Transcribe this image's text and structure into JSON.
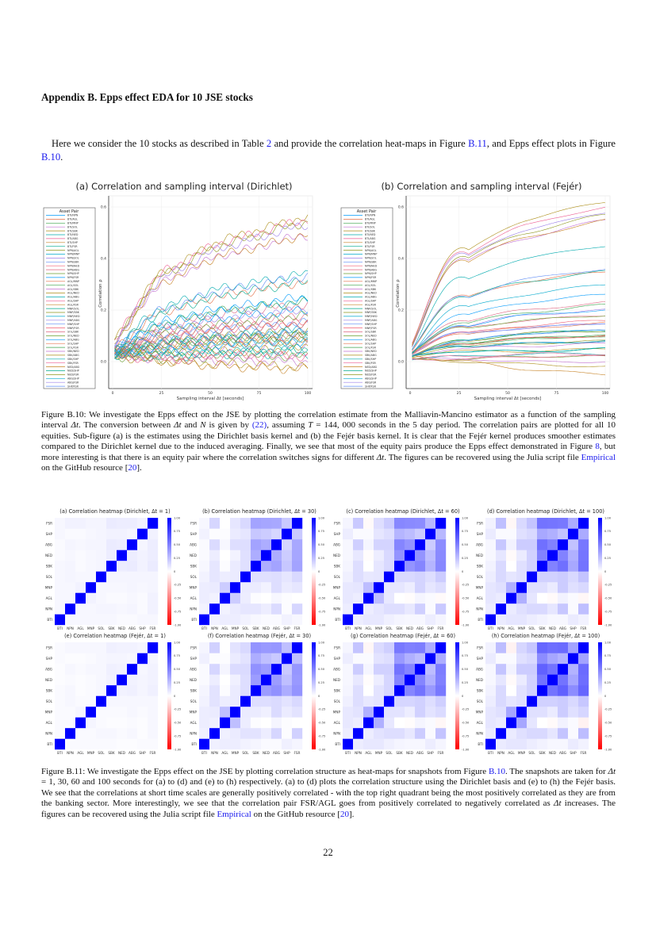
{
  "heading": "Appendix  B.  Epps effect EDA for 10 JSE stocks",
  "intro": [
    {
      "t": "Here we consider the 10 stocks as described in Table ",
      "s": ""
    },
    {
      "t": "2",
      "s": "link"
    },
    {
      "t": " and provide the correlation heat-maps in Figure ",
      "s": ""
    },
    {
      "t": "B.11",
      "s": "link"
    },
    {
      "t": ", and Epps effect plots in Figure ",
      "s": ""
    },
    {
      "t": "B.10",
      "s": "link"
    },
    {
      "t": ".",
      "s": ""
    }
  ],
  "caption_b10": [
    {
      "t": "Figure B.10: We investigate the Epps effect on the JSE by plotting the correlation estimate from the Malliavin-Mancino estimator as a function of the sampling interval ",
      "s": ""
    },
    {
      "t": "Δt",
      "s": "it"
    },
    {
      "t": ". The conversion between ",
      "s": ""
    },
    {
      "t": "Δt",
      "s": "it"
    },
    {
      "t": " and ",
      "s": ""
    },
    {
      "t": "N",
      "s": "it"
    },
    {
      "t": " is given by ",
      "s": ""
    },
    {
      "t": "(22)",
      "s": "link"
    },
    {
      "t": ", assuming ",
      "s": ""
    },
    {
      "t": "T",
      "s": "it"
    },
    {
      "t": " = 144, 000 seconds in the 5 day period. The correlation pairs are plotted for all 10 equities. Sub-figure (a) is the estimates using the Dirichlet basis kernel and (b) the Fejér basis kernel. It is clear that the Fejér kernel produces smoother estimates compared to the Dirichlet kernel due to the induced averaging. Finally, we see that most of the equity pairs produce the Epps effect demonstrated in Figure ",
      "s": ""
    },
    {
      "t": "8",
      "s": "link"
    },
    {
      "t": ", but more interesting is that there is an equity pair where the correlation switches signs for different ",
      "s": ""
    },
    {
      "t": "Δt",
      "s": "it"
    },
    {
      "t": ". The figures can be recovered using the Julia script file ",
      "s": ""
    },
    {
      "t": "Empirical",
      "s": "link"
    },
    {
      "t": " on the GitHub resource [",
      "s": ""
    },
    {
      "t": "20",
      "s": "link"
    },
    {
      "t": "].",
      "s": ""
    }
  ],
  "caption_b11": [
    {
      "t": "Figure B.11: We investigate the Epps effect on the JSE by plotting correlation structure as heat-maps for snapshots from Figure ",
      "s": ""
    },
    {
      "t": "B.10",
      "s": "link"
    },
    {
      "t": ". The snapshots are taken for ",
      "s": ""
    },
    {
      "t": "Δt",
      "s": "it"
    },
    {
      "t": " = 1, 30, 60 and 100 seconds for (a) to (d) and (e) to (h) respectively.  (a) to (d) plots the correlation structure using the Dirichlet basis and (e) to (h) the Fejér basis. We see that the correlations at short time scales are generally positively correlated - with the top right quadrant being the most positively correlated as they are from the banking sector. More interestingly, we see that the correlation pair FSR/AGL goes from positively correlated to negatively correlated as ",
      "s": ""
    },
    {
      "t": "Δt",
      "s": "it"
    },
    {
      "t": " increases. The figures can be recovered using the Julia script file ",
      "s": ""
    },
    {
      "t": "Empirical",
      "s": "link"
    },
    {
      "t": " on the GitHub resource [",
      "s": ""
    },
    {
      "t": "20",
      "s": "link"
    },
    {
      "t": "].",
      "s": ""
    }
  ],
  "page_number": "22",
  "colors": {
    "link": "#1a1aee",
    "heat_positive": "#0000ff",
    "heat_zero": "#ffffff",
    "heat_negative": "#ff0000",
    "palette": [
      "#009afa",
      "#e36f47",
      "#3ea44e",
      "#c371d2",
      "#ac8e18",
      "#00aaae",
      "#ed5e93",
      "#c68225",
      "#00a98d",
      "#8e971e",
      "#00a9cd",
      "#9b7fe9",
      "#618df6",
      "#f05f73",
      "#dd6480",
      "#6a9f31"
    ]
  },
  "stocks": [
    "BTI",
    "NPN",
    "AGL",
    "MNP",
    "SOL",
    "SBK",
    "NED",
    "ABG",
    "SHP",
    "FSR"
  ],
  "pairs": [
    "BTI/NPN",
    "BTI/AGL",
    "BTI/MNP",
    "BTI/SOL",
    "BTI/SBK",
    "BTI/NED",
    "BTI/ABG",
    "BTI/SHP",
    "BTI/FSR",
    "NPN/AGL",
    "NPN/MNP",
    "NPN/SOL",
    "NPN/SBK",
    "NPN/NED",
    "NPN/ABG",
    "NPN/SHP",
    "NPN/FSR",
    "AGL/MNP",
    "AGL/SOL",
    "AGL/SBK",
    "AGL/NED",
    "AGL/ABG",
    "AGL/SHP",
    "AGL/FSR",
    "MNP/SOL",
    "MNP/SBK",
    "MNP/NED",
    "MNP/ABG",
    "MNP/SHP",
    "MNP/FSR",
    "SOL/SBK",
    "SOL/NED",
    "SOL/ABG",
    "SOL/SHP",
    "SOL/FSR",
    "SBK/NED",
    "SBK/ABG",
    "SBK/SHP",
    "SBK/FSR",
    "NED/ABG",
    "NED/SHP",
    "NED/FSR",
    "ABG/SHP",
    "ABG/FSR",
    "SHP/FSR"
  ],
  "chart_data": [
    {
      "type": "line",
      "title": "(a) Correlation and sampling interval (Dirichlet)",
      "xlabel": "Sampling interval Δt [seconds]",
      "ylabel": "Correlation ρ",
      "legend_title": "Asset Pair",
      "legend_position": "outside-left",
      "grid": true,
      "xlim": [
        0,
        100
      ],
      "ylim": [
        -0.1,
        0.64
      ],
      "xticks": [
        "0",
        "25",
        "50",
        "75",
        "100"
      ],
      "yticks": [
        "0.0",
        "0.2",
        "0.4",
        "0.6"
      ],
      "x": [
        1,
        30,
        60,
        100
      ],
      "series": [
        [
          0.03,
          0.05,
          0.07,
          0.08
        ],
        [
          0.03,
          0.07,
          0.09,
          0.1
        ],
        [
          0.03,
          0.07,
          0.09,
          0.1
        ],
        [
          0.03,
          0.05,
          0.06,
          0.07
        ],
        [
          0.03,
          0.03,
          0.04,
          0.05
        ],
        [
          0.02,
          0.02,
          0.03,
          0.03
        ],
        [
          0.02,
          0.02,
          0.03,
          0.03
        ],
        [
          0.03,
          0.05,
          0.07,
          0.08
        ],
        [
          0.03,
          0.03,
          0.04,
          0.05
        ],
        [
          0.03,
          0.05,
          0.07,
          0.08
        ],
        [
          0.03,
          0.08,
          0.1,
          0.12
        ],
        [
          0.04,
          0.1,
          0.13,
          0.15
        ],
        [
          0.04,
          0.1,
          0.13,
          0.15
        ],
        [
          0.03,
          0.07,
          0.09,
          0.1
        ],
        [
          0.04,
          0.14,
          0.19,
          0.22
        ],
        [
          0.02,
          0.01,
          0.02,
          0.02
        ],
        [
          0.05,
          0.16,
          0.21,
          0.25
        ],
        [
          0.05,
          0.2,
          0.26,
          0.31
        ],
        [
          0.03,
          0.07,
          0.09,
          0.1
        ],
        [
          0.02,
          0.01,
          0.0,
          0.0
        ],
        [
          0.02,
          0.0,
          -0.01,
          -0.02
        ],
        [
          0.03,
          0.03,
          0.04,
          0.05
        ],
        [
          0.02,
          0.01,
          0.02,
          0.02
        ],
        [
          0.05,
          0.0,
          -0.02,
          -0.03
        ],
        [
          0.03,
          0.08,
          0.1,
          0.12
        ],
        [
          0.03,
          0.08,
          0.1,
          0.12
        ],
        [
          0.03,
          0.05,
          0.07,
          0.08
        ],
        [
          0.04,
          0.13,
          0.17,
          0.2
        ],
        [
          0.03,
          0.08,
          0.1,
          0.12
        ],
        [
          0.04,
          0.1,
          0.13,
          0.15
        ],
        [
          0.04,
          0.12,
          0.15,
          0.18
        ],
        [
          0.04,
          0.12,
          0.15,
          0.18
        ],
        [
          0.04,
          0.13,
          0.17,
          0.2
        ],
        [
          0.04,
          0.1,
          0.13,
          0.15
        ],
        [
          0.04,
          0.15,
          0.2,
          0.23
        ],
        [
          0.07,
          0.32,
          0.42,
          0.49
        ],
        [
          0.08,
          0.36,
          0.48,
          0.56
        ],
        [
          0.05,
          0.22,
          0.29,
          0.34
        ],
        [
          0.08,
          0.36,
          0.47,
          0.55
        ],
        [
          0.07,
          0.32,
          0.42,
          0.49
        ],
        [
          0.05,
          0.2,
          0.26,
          0.31
        ],
        [
          0.07,
          0.35,
          0.46,
          0.54
        ],
        [
          0.04,
          0.16,
          0.2,
          0.24
        ],
        [
          0.07,
          0.34,
          0.45,
          0.53
        ],
        [
          0.05,
          0.21,
          0.28,
          0.33
        ]
      ]
    },
    {
      "type": "line",
      "title": "(b) Correlation and sampling interval (Fejér)",
      "xlabel": "Sampling interval Δt [seconds]",
      "ylabel": "Correlation ρ",
      "legend_title": "Asset Pair",
      "legend_position": "outside-left",
      "grid": true,
      "xlim": [
        0,
        100
      ],
      "ylim": [
        -0.1,
        0.64
      ],
      "xticks": [
        "0",
        "25",
        "50",
        "75",
        "100"
      ],
      "yticks": [
        "0.0",
        "0.2",
        "0.4",
        "0.6"
      ],
      "x": [
        1,
        30,
        60,
        100
      ],
      "series": [
        [
          0.02,
          0.06,
          0.07,
          0.08
        ],
        [
          0.02,
          0.07,
          0.09,
          0.1
        ],
        [
          0.02,
          0.07,
          0.09,
          0.1
        ],
        [
          0.02,
          0.05,
          0.06,
          0.07
        ],
        [
          0.02,
          0.04,
          0.04,
          0.05
        ],
        [
          0.01,
          0.02,
          0.03,
          0.03
        ],
        [
          0.01,
          0.02,
          0.03,
          0.03
        ],
        [
          0.02,
          0.06,
          0.07,
          0.08
        ],
        [
          0.02,
          0.04,
          0.04,
          0.05
        ],
        [
          0.02,
          0.06,
          0.07,
          0.08
        ],
        [
          0.02,
          0.08,
          0.11,
          0.12
        ],
        [
          0.03,
          0.11,
          0.13,
          0.15
        ],
        [
          0.03,
          0.11,
          0.13,
          0.15
        ],
        [
          0.02,
          0.07,
          0.09,
          0.1
        ],
        [
          0.03,
          0.16,
          0.2,
          0.23
        ],
        [
          0.01,
          0.01,
          0.02,
          0.02
        ],
        [
          0.03,
          0.18,
          0.23,
          0.26
        ],
        [
          0.04,
          0.25,
          0.31,
          0.35
        ],
        [
          0.02,
          0.07,
          0.09,
          0.1
        ],
        [
          0.01,
          0.01,
          0.0,
          0.0
        ],
        [
          0.01,
          0.0,
          -0.01,
          -0.02
        ],
        [
          0.02,
          0.04,
          0.04,
          0.05
        ],
        [
          0.01,
          0.01,
          0.02,
          0.02
        ],
        [
          0.03,
          0.0,
          -0.03,
          -0.05
        ],
        [
          0.02,
          0.08,
          0.11,
          0.12
        ],
        [
          0.02,
          0.08,
          0.11,
          0.12
        ],
        [
          0.02,
          0.06,
          0.07,
          0.08
        ],
        [
          0.03,
          0.14,
          0.18,
          0.2
        ],
        [
          0.02,
          0.08,
          0.11,
          0.12
        ],
        [
          0.03,
          0.11,
          0.14,
          0.16
        ],
        [
          0.03,
          0.13,
          0.16,
          0.18
        ],
        [
          0.03,
          0.13,
          0.16,
          0.18
        ],
        [
          0.03,
          0.14,
          0.18,
          0.2
        ],
        [
          0.03,
          0.11,
          0.13,
          0.15
        ],
        [
          0.03,
          0.15,
          0.19,
          0.22
        ],
        [
          0.05,
          0.39,
          0.48,
          0.55
        ],
        [
          0.06,
          0.43,
          0.55,
          0.62
        ],
        [
          0.04,
          0.32,
          0.4,
          0.45
        ],
        [
          0.06,
          0.42,
          0.53,
          0.6
        ],
        [
          0.05,
          0.39,
          0.48,
          0.55
        ],
        [
          0.04,
          0.25,
          0.31,
          0.35
        ],
        [
          0.05,
          0.4,
          0.5,
          0.57
        ],
        [
          0.03,
          0.21,
          0.26,
          0.3
        ],
        [
          0.05,
          0.41,
          0.51,
          0.58
        ],
        [
          0.04,
          0.25,
          0.32,
          0.36
        ]
      ]
    },
    {
      "type": "heatmap",
      "note_source": "snapshots of the line charts above",
      "colorbar_ticks": [
        "1.00",
        "0.75",
        "0.50",
        "0.25",
        "0",
        "-0.25",
        "-0.50",
        "-0.75",
        "-1.00"
      ],
      "zlim": [
        -1,
        1
      ],
      "panels": [
        {
          "title": "(a) Correlation heatmap (Dirichlet, Δt = 1)",
          "kernel": 0,
          "snapshot": 0
        },
        {
          "title": "(b) Correlation heatmap (Dirichlet, Δt = 30)",
          "kernel": 0,
          "snapshot": 1
        },
        {
          "title": "(c) Correlation heatmap (Dirichlet, Δt = 60)",
          "kernel": 0,
          "snapshot": 2
        },
        {
          "title": "(d) Correlation heatmap (Dirichlet, Δt = 100)",
          "kernel": 0,
          "snapshot": 3
        },
        {
          "title": "(e) Correlation heatmap (Fejér, Δt = 1)",
          "kernel": 1,
          "snapshot": 0
        },
        {
          "title": "(f) Correlation heatmap (Fejér, Δt = 30)",
          "kernel": 1,
          "snapshot": 1
        },
        {
          "title": "(g) Correlation heatmap (Fejér, Δt = 60)",
          "kernel": 1,
          "snapshot": 2
        },
        {
          "title": "(h) Correlation heatmap (Fejér, Δt = 100)",
          "kernel": 1,
          "snapshot": 3
        }
      ]
    }
  ]
}
